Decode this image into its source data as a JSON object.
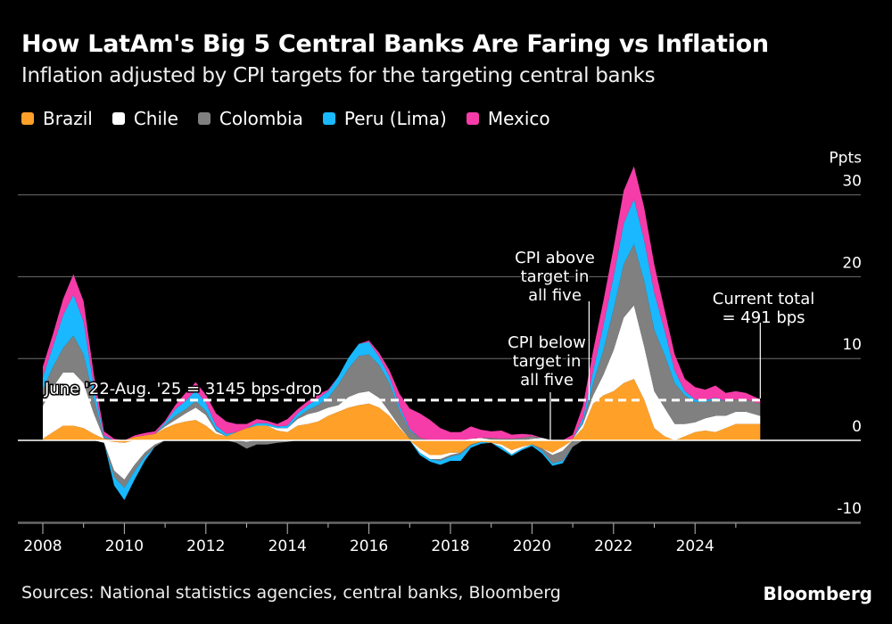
{
  "header": {
    "title": "How LatAm's Big 5 Central Banks Are Faring vs Inflation",
    "subtitle": "Inflation adjusted by CPI targets for the targeting central banks"
  },
  "footer": {
    "source": "Sources: National statistics agencies, central banks, Bloomberg",
    "brand": "Bloomberg"
  },
  "chart_data": {
    "type": "area",
    "stacked": true,
    "title": "How LatAm's Big 5 Central Banks Are Faring vs Inflation",
    "subtitle": "Inflation adjusted by CPI targets for the targeting central banks",
    "xlabel": "",
    "ylabel": "Ppts",
    "xlim": [
      2008,
      2026.5
    ],
    "ylim": [
      -10,
      30
    ],
    "x_ticks": [
      2008,
      2010,
      2012,
      2014,
      2016,
      2018,
      2020,
      2022,
      2024
    ],
    "x_tick_labels": [
      "2008",
      "2010",
      "2012",
      "2014",
      "2016",
      "2018",
      "2020",
      "2022",
      "2024"
    ],
    "y_ticks": [
      -10,
      0,
      10,
      20,
      30
    ],
    "y_tick_labels": [
      "-10",
      "0",
      "10",
      "20",
      "30"
    ],
    "y_unit_label": "Ppts",
    "grid": true,
    "legend_position": "top-left",
    "x": [
      2008.0,
      2008.25,
      2008.5,
      2008.75,
      2009.0,
      2009.25,
      2009.5,
      2009.75,
      2010.0,
      2010.25,
      2010.5,
      2010.75,
      2011.0,
      2011.25,
      2011.5,
      2011.75,
      2012.0,
      2012.25,
      2012.5,
      2012.75,
      2013.0,
      2013.25,
      2013.5,
      2013.75,
      2014.0,
      2014.25,
      2014.5,
      2014.75,
      2015.0,
      2015.25,
      2015.5,
      2015.75,
      2016.0,
      2016.25,
      2016.5,
      2016.75,
      2017.0,
      2017.25,
      2017.5,
      2017.75,
      2018.0,
      2018.25,
      2018.5,
      2018.75,
      2019.0,
      2019.25,
      2019.5,
      2019.75,
      2020.0,
      2020.25,
      2020.5,
      2020.75,
      2021.0,
      2021.25,
      2021.5,
      2021.75,
      2022.0,
      2022.25,
      2022.5,
      2022.75,
      2023.0,
      2023.25,
      2023.5,
      2023.75,
      2024.0,
      2024.25,
      2024.5,
      2024.75,
      2025.0,
      2025.25,
      2025.6
    ],
    "series": [
      {
        "name": "Brazil",
        "color": "#ffa028",
        "values": [
          0.2,
          1.0,
          1.8,
          1.8,
          1.5,
          0.8,
          0.2,
          -0.2,
          -0.3,
          0.4,
          0.6,
          0.8,
          1.5,
          2.0,
          2.3,
          2.5,
          1.8,
          0.8,
          0.5,
          1.0,
          1.5,
          1.8,
          1.8,
          1.2,
          1.0,
          1.8,
          2.0,
          2.3,
          3.0,
          3.5,
          4.0,
          4.3,
          4.5,
          4.0,
          3.0,
          1.5,
          0.2,
          -1.0,
          -1.8,
          -1.8,
          -1.5,
          -1.5,
          -0.5,
          -0.2,
          -0.3,
          -0.5,
          -1.2,
          -0.8,
          -0.5,
          -1.0,
          -1.5,
          -0.8,
          0.2,
          1.5,
          4.5,
          5.5,
          6.0,
          7.0,
          7.5,
          5.0,
          1.5,
          0.5,
          0.0,
          0.5,
          1.0,
          1.2,
          1.0,
          1.5,
          2.0,
          2.0,
          2.0
        ]
      },
      {
        "name": "Chile",
        "color": "#ffffff",
        "values": [
          4.0,
          5.5,
          6.5,
          6.5,
          5.5,
          2.5,
          -0.3,
          -3.5,
          -4.5,
          -3.0,
          -1.5,
          -0.5,
          0.2,
          0.5,
          1.0,
          1.5,
          1.3,
          0.3,
          0.0,
          0.0,
          -0.2,
          0.0,
          0.0,
          0.3,
          0.5,
          0.8,
          1.2,
          1.2,
          1.0,
          0.8,
          1.3,
          1.5,
          1.5,
          1.2,
          0.5,
          0.2,
          0.0,
          -0.5,
          -0.5,
          -0.5,
          -0.3,
          0.0,
          0.2,
          0.3,
          0.1,
          -0.3,
          -0.5,
          -0.2,
          0.2,
          0.3,
          -0.3,
          -0.5,
          0.0,
          0.5,
          1.0,
          2.5,
          5.0,
          8.0,
          9.0,
          6.5,
          4.5,
          3.5,
          2.0,
          1.5,
          1.2,
          1.5,
          2.0,
          1.5,
          1.5,
          1.5,
          1.0
        ]
      },
      {
        "name": "Colombia",
        "color": "#808080",
        "values": [
          2.0,
          2.5,
          3.0,
          4.5,
          3.5,
          1.8,
          0.2,
          -0.8,
          -1.0,
          -0.8,
          -0.5,
          -0.3,
          0.2,
          0.5,
          0.5,
          0.8,
          0.5,
          0.2,
          0.0,
          -0.3,
          -0.8,
          -0.5,
          -0.5,
          -0.3,
          -0.2,
          0.2,
          0.5,
          0.8,
          1.2,
          2.5,
          3.5,
          4.5,
          4.5,
          4.0,
          3.5,
          2.0,
          1.0,
          0.3,
          0.0,
          -0.2,
          -0.2,
          -0.2,
          -0.1,
          0.0,
          0.2,
          0.2,
          0.2,
          0.3,
          0.3,
          -0.3,
          -1.0,
          -1.2,
          -0.8,
          0.2,
          1.5,
          3.0,
          5.0,
          6.5,
          7.5,
          8.0,
          7.5,
          6.5,
          5.0,
          3.5,
          2.5,
          2.0,
          2.0,
          1.8,
          1.5,
          1.5,
          1.5
        ]
      },
      {
        "name": "Peru (Lima)",
        "color": "#1ab9ff",
        "values": [
          1.5,
          2.5,
          4.0,
          5.0,
          4.0,
          1.5,
          0.2,
          -1.0,
          -1.5,
          -1.0,
          -0.5,
          0.0,
          0.3,
          0.8,
          1.0,
          1.3,
          1.0,
          0.5,
          0.3,
          0.0,
          0.0,
          0.3,
          0.3,
          0.2,
          0.3,
          0.5,
          0.6,
          0.8,
          0.8,
          1.0,
          1.3,
          1.5,
          1.5,
          1.0,
          0.8,
          0.5,
          0.2,
          -0.3,
          -0.3,
          -0.5,
          -0.5,
          -0.8,
          -0.3,
          -0.2,
          0.0,
          -0.3,
          -0.2,
          -0.2,
          -0.2,
          -0.3,
          -0.3,
          -0.3,
          0.0,
          0.5,
          1.5,
          3.0,
          4.0,
          5.0,
          5.5,
          5.0,
          4.5,
          3.0,
          1.5,
          0.5,
          0.3,
          0.2,
          0.2,
          0.0,
          0.0,
          0.0,
          0.0
        ]
      },
      {
        "name": "Mexico",
        "color": "#f53ca9",
        "values": [
          1.3,
          1.5,
          2.0,
          2.5,
          2.5,
          1.5,
          0.5,
          0.2,
          0.0,
          0.2,
          0.3,
          0.3,
          0.2,
          0.5,
          1.0,
          1.0,
          1.0,
          1.5,
          1.5,
          1.0,
          0.5,
          0.5,
          0.3,
          0.3,
          0.8,
          0.5,
          0.5,
          0.5,
          0.2,
          0.0,
          0.0,
          0.0,
          0.2,
          0.5,
          0.8,
          1.5,
          2.5,
          3.0,
          2.5,
          1.5,
          1.0,
          1.0,
          1.5,
          1.0,
          0.8,
          1.0,
          0.5,
          0.5,
          0.2,
          0.0,
          0.0,
          0.0,
          0.5,
          1.5,
          2.5,
          3.0,
          3.5,
          4.0,
          4.0,
          4.0,
          3.5,
          2.5,
          2.0,
          1.5,
          1.5,
          1.3,
          1.5,
          1.0,
          1.0,
          0.8,
          0.5
        ]
      }
    ],
    "reference_line": {
      "value": 4.91,
      "style": "dashed",
      "label": "June '22-Aug. '25 = 3145 bps-drop"
    },
    "annotations": [
      {
        "text": [
          "CPI above",
          "target in",
          "all five"
        ],
        "x": 2021.4
      },
      {
        "text": [
          "CPI below",
          "target in",
          "all five"
        ],
        "x": 2020.45
      },
      {
        "text": [
          "Current total",
          "= 491 bps"
        ],
        "x": 2025.6
      }
    ]
  }
}
